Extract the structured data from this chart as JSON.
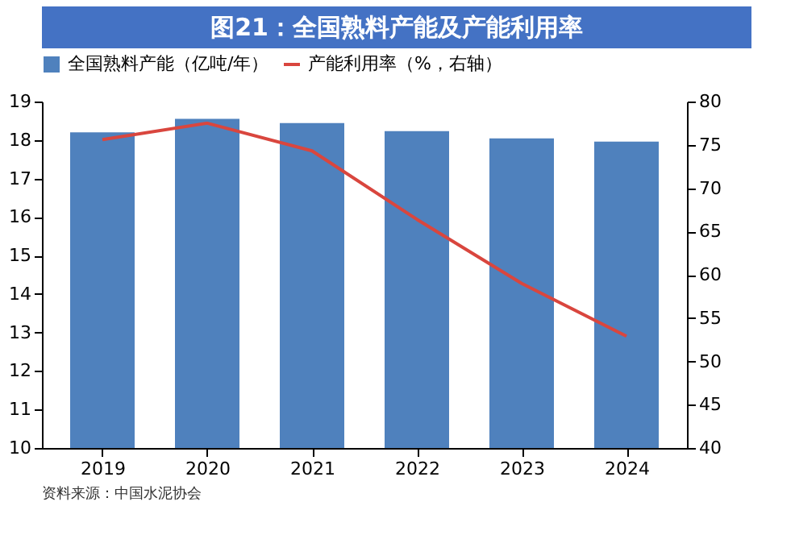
{
  "chart_data": {
    "type": "bar",
    "title": "图21：全国熟料产能及产能利用率",
    "categories": [
      "2019",
      "2020",
      "2021",
      "2022",
      "2023",
      "2024"
    ],
    "series": [
      {
        "name": "全国熟料产能（亿吨/年）",
        "color": "#4f81bd",
        "values": [
          18.2,
          18.55,
          18.44,
          18.23,
          18.04,
          17.96
        ]
      },
      {
        "name": "产能利用率（%，右轴）",
        "type": "line",
        "axis": "y2",
        "color": "#d9463e",
        "values": [
          75.6,
          77.5,
          74.3,
          66.4,
          59.0,
          52.9
        ]
      }
    ],
    "ylim": [
      10,
      19
    ],
    "yticks": [
      10,
      11,
      12,
      13,
      14,
      15,
      16,
      17,
      18,
      19
    ],
    "y2lim": [
      40,
      80
    ],
    "y2ticks": [
      40,
      45,
      50,
      55,
      60,
      65,
      70,
      75,
      80
    ],
    "grid": false,
    "legend": "top",
    "marker": "none",
    "line_style": "solid",
    "annotations": [
      "资料来源：中国水泥协会"
    ]
  }
}
